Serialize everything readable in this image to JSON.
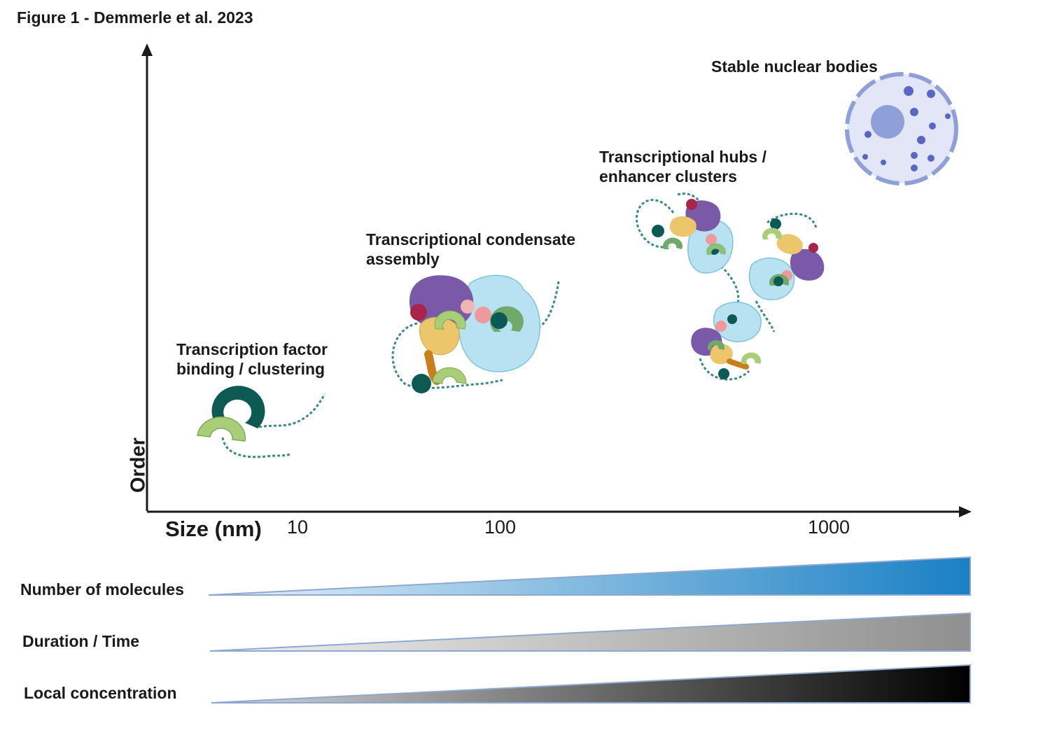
{
  "figure": {
    "title": "Figure 1 - Demmerle et al. 2023"
  },
  "axes": {
    "y_label": "Order",
    "x_label": "Size (nm)",
    "x_ticks": [
      "10",
      "100",
      "1000"
    ]
  },
  "stages": [
    {
      "line1": "Transcription factor",
      "line2": "binding / clustering"
    },
    {
      "line1": "Transcriptional condensate",
      "line2": "assembly"
    },
    {
      "line1": "Transcriptional hubs /",
      "line2": "enhancer clusters"
    },
    {
      "line1": "Stable nuclear bodies",
      "line2": ""
    }
  ],
  "gradients": [
    {
      "label": "Number of molecules",
      "start_color": "#e6f1fa",
      "end_color": "#1a80c4"
    },
    {
      "label": "Duration / Time",
      "start_color": "#f2f2f2",
      "end_color": "#8f8f8f"
    },
    {
      "label": "Local concentration",
      "start_color": "#d9d9d9",
      "end_color": "#000000"
    }
  ],
  "colors": {
    "axis": "#1a1a1a",
    "dna": "#3a8a8a",
    "dark_green": "#0d5a55",
    "light_green": "#a8cf78",
    "purple": "#7a5aa8",
    "light_blue": "#b8e2f2",
    "yellow": "#ecc66a",
    "orange": "#c9801a",
    "pink": "#ee9a9a",
    "crimson": "#a8244a",
    "nucleus_fill": "#e2e6f6",
    "nucleus_stroke": "#8f9fd8",
    "nucleolus": "#8f9fd8",
    "body_dots": "#5a66c4"
  }
}
